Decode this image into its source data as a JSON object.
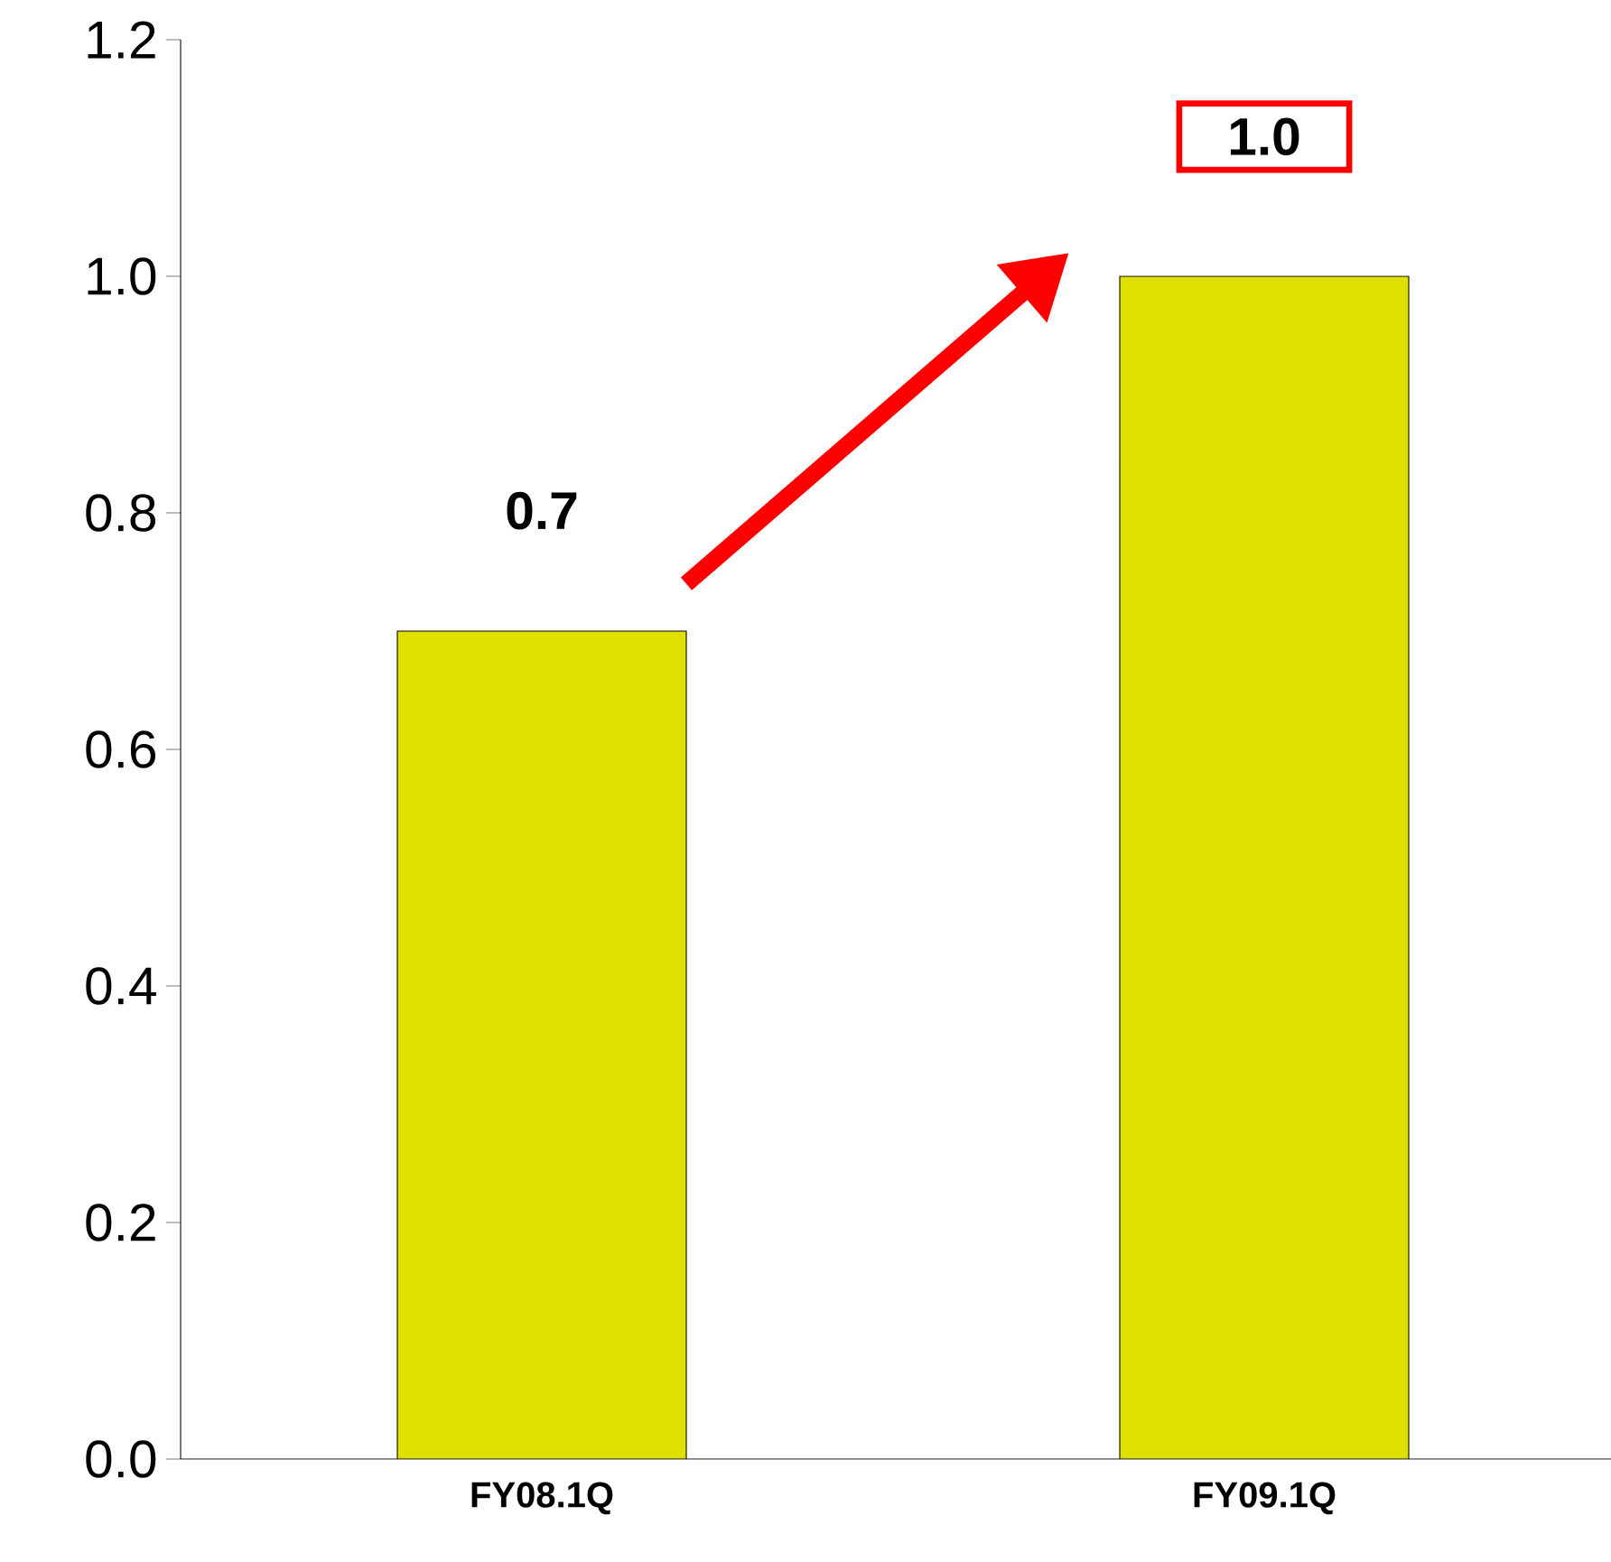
{
  "chart_data": {
    "type": "bar",
    "categories": [
      "FY08.1Q",
      "FY09.1Q"
    ],
    "values": [
      0.7,
      1.0
    ],
    "color": "#e0e000",
    "value_labels": [
      "0.7",
      "1.0"
    ],
    "ylim": [
      0,
      1.2
    ],
    "yticks": [
      {
        "value": 0,
        "label": "0.0"
      },
      {
        "value": 0.2,
        "label": "0.2"
      },
      {
        "value": 0.4,
        "label": "0.4"
      },
      {
        "value": 0.6,
        "label": "0.6"
      },
      {
        "value": 0.8,
        "label": "0.8"
      },
      {
        "value": 1.0,
        "label": "1.0"
      },
      {
        "value": 1.2,
        "label": "1.2"
      }
    ],
    "grid": false
  }
}
